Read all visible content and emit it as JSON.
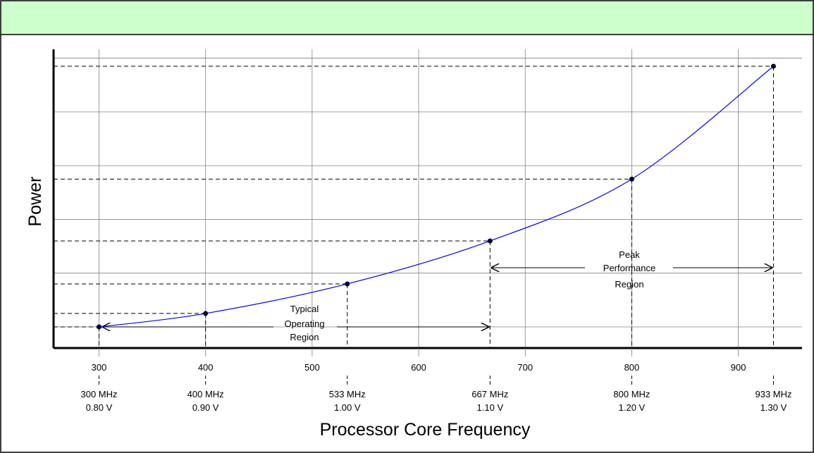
{
  "colors": {
    "header": "#ccffcc",
    "line": "#0000ff",
    "grid": "#808080",
    "axis": "#000000",
    "point": "#000033"
  },
  "chart_data": {
    "type": "line",
    "title": "",
    "xlabel": "Processor Core Frequency",
    "ylabel": "Power",
    "xlim": [
      256.5,
      1008
    ],
    "ylim": [
      0,
      6
    ],
    "grid": true,
    "x_ticks": [
      300,
      400,
      500,
      600,
      700,
      800,
      900
    ],
    "y_gridlines": [
      0.45,
      1.45,
      2.45,
      3.45,
      4.45,
      5.45
    ],
    "series": [
      {
        "x": [
          300,
          400,
          533,
          667,
          800,
          933
        ],
        "y": [
          0.45,
          0.7,
          1.25,
          2.05,
          3.2,
          5.3
        ]
      }
    ],
    "operating_points": [
      {
        "x": 300,
        "freq": "300 MHz",
        "volt": "0.80 V"
      },
      {
        "x": 400,
        "freq": "400 MHz",
        "volt": "0.90 V"
      },
      {
        "x": 533,
        "freq": "533 MHz",
        "volt": "1.00 V"
      },
      {
        "x": 667,
        "freq": "667 MHz",
        "volt": "1.10 V"
      },
      {
        "x": 800,
        "freq": "800 MHz",
        "volt": "1.20 V"
      },
      {
        "x": 933,
        "freq": "933 MHz",
        "volt": "1.30 V"
      }
    ],
    "annotations": [
      {
        "lines": [
          "Typical",
          "Operating",
          "Region"
        ],
        "x_from": 300,
        "x_to": 667
      },
      {
        "lines": [
          "Peak",
          "Performance",
          "Region"
        ],
        "x_from": 667,
        "x_to": 933
      }
    ]
  }
}
